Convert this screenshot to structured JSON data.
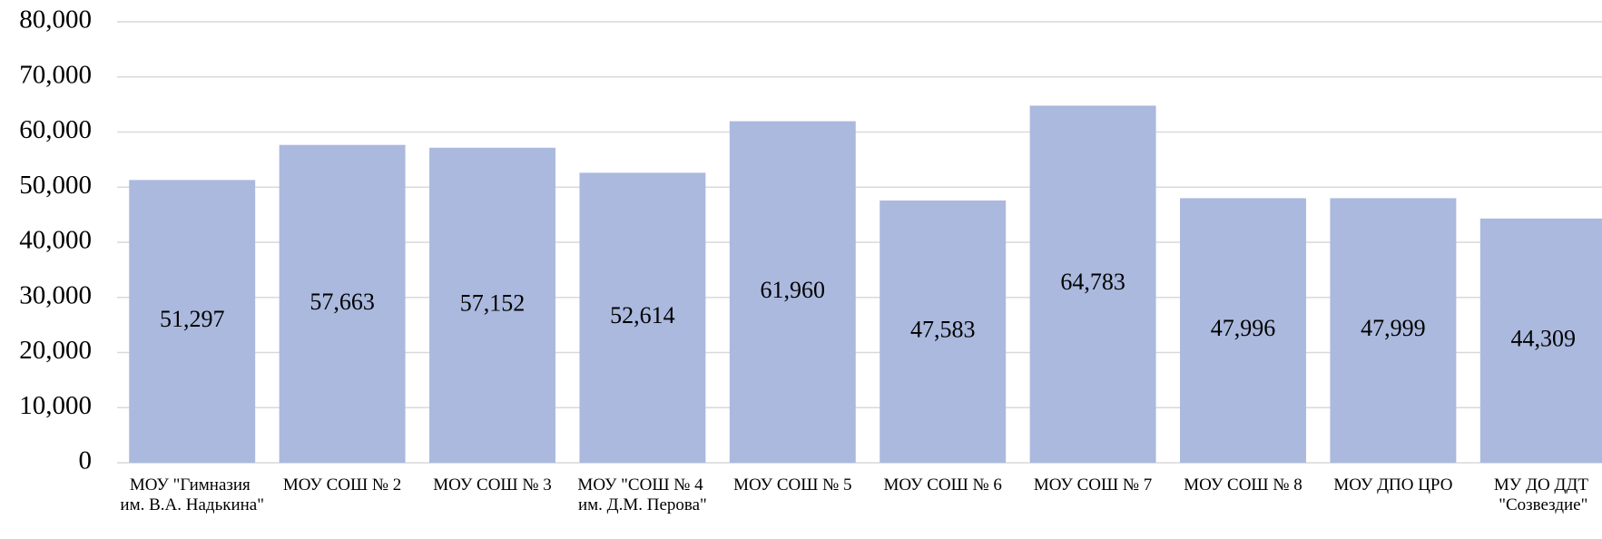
{
  "chart_data": {
    "type": "bar",
    "categories": [
      "МОУ \"Гимназия им. В.А. Надькина\"",
      "МОУ СОШ № 2",
      "МОУ СОШ № 3",
      "МОУ \"СОШ № 4 им. Д.М. Перова\"",
      "МОУ СОШ № 5",
      "МОУ СОШ № 6",
      "МОУ СОШ № 7",
      "МОУ СОШ № 8",
      "МОУ ДПО ЦРО",
      "МУ ДО ДДТ \"Созвездие\""
    ],
    "values": [
      51297,
      57663,
      57152,
      52614,
      61960,
      47583,
      64783,
      47996,
      47999,
      44309
    ],
    "value_labels": [
      "51,297",
      "57,663",
      "57,152",
      "52,614",
      "61,960",
      "47,583",
      "64,783",
      "47,996",
      "47,999",
      "44,309"
    ],
    "color": "#abb9de",
    "ylim": [
      0,
      80000
    ],
    "yticks": [
      0,
      {
        "value": 10000,
        "label": "10,000"
      },
      {
        "value": 20000,
        "label": "20,000"
      },
      {
        "value": 30000,
        "label": "30,000"
      },
      {
        "value": 40000,
        "label": "40,000"
      },
      {
        "value": 50000,
        "label": "50,000"
      },
      {
        "value": 60000,
        "label": "60,000"
      },
      {
        "value": 70000,
        "label": "70,000"
      },
      {
        "value": 80000,
        "label": "80,000"
      }
    ],
    "grid": true
  }
}
